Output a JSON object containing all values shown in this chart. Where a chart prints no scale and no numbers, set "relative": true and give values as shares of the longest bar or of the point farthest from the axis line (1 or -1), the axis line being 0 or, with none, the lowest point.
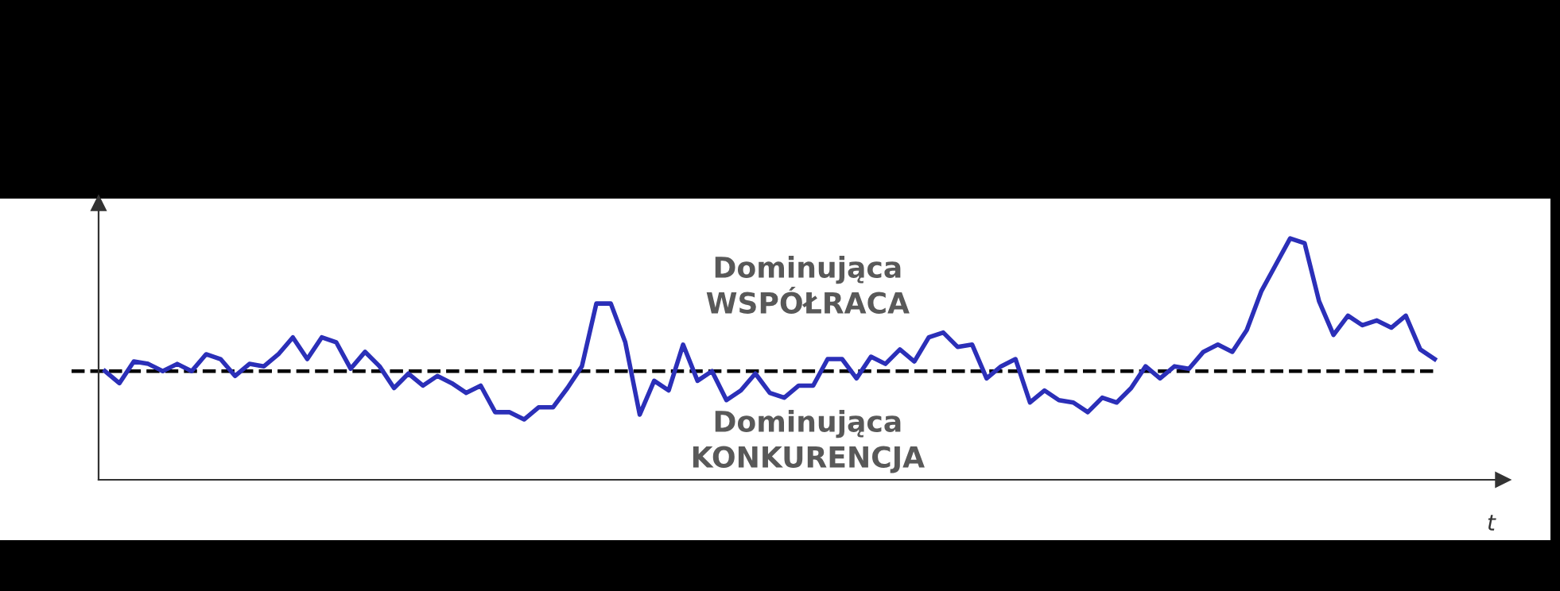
{
  "chart_data": {
    "type": "line",
    "relative": true,
    "xlabel": "t",
    "annotations": [
      "Dominująca\nWSPÓŁRACA",
      "Dominująca\nKONKURENCJA"
    ],
    "categories": [
      null,
      null,
      null,
      null,
      null,
      null,
      null,
      null,
      null,
      null,
      null,
      null,
      null,
      null,
      null,
      null,
      null,
      null,
      null,
      null,
      null,
      null,
      null,
      null,
      null,
      null,
      null,
      null,
      null,
      null,
      null,
      null,
      null,
      null,
      null,
      null,
      null,
      null,
      null,
      null,
      null,
      null,
      null,
      null,
      null,
      null,
      null,
      null,
      null,
      null,
      null,
      null,
      null,
      null,
      null,
      null,
      null,
      null,
      null,
      null,
      null,
      null,
      null,
      null,
      null,
      null,
      null,
      null,
      null,
      null,
      null,
      null,
      null,
      null,
      null,
      null,
      null,
      null,
      null,
      null,
      null,
      null,
      null,
      null,
      null,
      null,
      null,
      null,
      null,
      null,
      null,
      null,
      null
    ],
    "series": [
      {
        "color": "#2b2fb8",
        "values": [
          0.45,
          0.4,
          0.49,
          0.48,
          0.45,
          0.48,
          0.45,
          0.52,
          0.5,
          0.43,
          0.48,
          0.47,
          0.52,
          0.59,
          0.5,
          0.59,
          0.57,
          0.46,
          0.53,
          0.47,
          0.38,
          0.44,
          0.39,
          0.43,
          0.4,
          0.36,
          0.39,
          0.28,
          0.28,
          0.25,
          0.3,
          0.3,
          0.38,
          0.47,
          0.73,
          0.73,
          0.57,
          0.27,
          0.41,
          0.37,
          0.56,
          0.41,
          0.45,
          0.33,
          0.37,
          0.44,
          0.36,
          0.34,
          0.39,
          0.39,
          0.5,
          0.5,
          0.42,
          0.51,
          0.48,
          0.54,
          0.49,
          0.59,
          0.61,
          0.55,
          0.56,
          0.42,
          0.47,
          0.5,
          0.32,
          0.37,
          0.33,
          0.32,
          0.28,
          0.34,
          0.32,
          0.38,
          0.47,
          0.42,
          0.47,
          0.46,
          0.53,
          0.56,
          0.53,
          0.62,
          0.78,
          0.89,
          1.0,
          0.98,
          0.74,
          0.6,
          0.68,
          0.64,
          0.66,
          0.63,
          0.68,
          0.54,
          0.5
        ]
      }
    ],
    "ref_lines": [
      {
        "axis": "y",
        "value": 0.45,
        "color": "#000000",
        "line_style": "dashed"
      }
    ],
    "marker": "none",
    "line_style": "solid",
    "legend": false
  }
}
